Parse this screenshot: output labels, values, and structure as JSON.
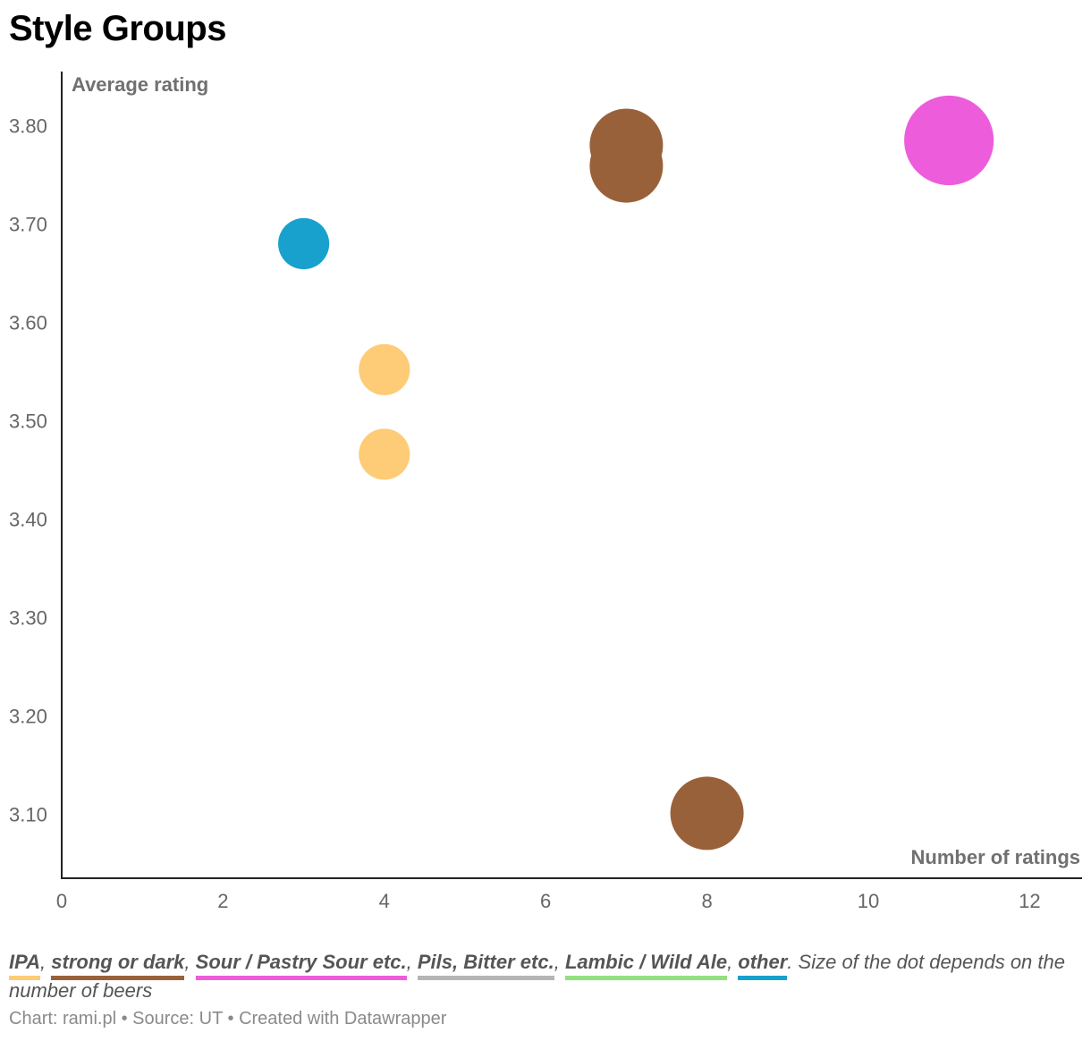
{
  "title": "Style Groups",
  "chart_data": {
    "type": "scatter",
    "title": "Style Groups",
    "xlabel": "Number of ratings",
    "ylabel": "Average rating",
    "xlim": [
      0,
      12.65
    ],
    "ylim": [
      3.035,
      3.855
    ],
    "x_ticks": [
      0,
      2,
      4,
      6,
      8,
      10,
      12
    ],
    "y_ticks": [
      3.1,
      3.2,
      3.3,
      3.4,
      3.5,
      3.6,
      3.7,
      3.8
    ],
    "y_tick_labels": [
      "3.10",
      "3.20",
      "3.30",
      "3.40",
      "3.50",
      "3.60",
      "3.70",
      "3.80"
    ],
    "size_encoding": "number of beers",
    "series": [
      {
        "name": "IPA",
        "color": "#fecb76",
        "points": [
          {
            "x": 4,
            "y": 3.552,
            "size": 1
          },
          {
            "x": 4,
            "y": 3.466,
            "size": 1
          }
        ]
      },
      {
        "name": "strong or dark",
        "color": "#99613a",
        "points": [
          {
            "x": 7,
            "y": 3.78,
            "size": 2
          },
          {
            "x": 7,
            "y": 3.759,
            "size": 2
          },
          {
            "x": 8,
            "y": 3.101,
            "size": 2
          }
        ]
      },
      {
        "name": "Sour / Pastry Sour etc.",
        "color": "#ed5ddb",
        "points": [
          {
            "x": 11,
            "y": 3.785,
            "size": 3
          }
        ]
      },
      {
        "name": "Pils, Bitter etc.",
        "color": "#b5b5b5",
        "points": []
      },
      {
        "name": "Lambic / Wild Ale",
        "color": "#92e07f",
        "points": []
      },
      {
        "name": "other",
        "color": "#18a1cd",
        "points": [
          {
            "x": 3,
            "y": 3.68,
            "size": 1
          }
        ]
      }
    ]
  },
  "legend": {
    "items": [
      {
        "label": "IPA",
        "color": "#fecb76"
      },
      {
        "label": "strong or dark",
        "color": "#99613a"
      },
      {
        "label": "Sour / Pastry Sour etc.",
        "color": "#ed5ddb"
      },
      {
        "label": "Pils, Bitter etc.",
        "color": "#b5b5b5"
      },
      {
        "label": "Lambic / Wild Ale",
        "color": "#92e07f"
      },
      {
        "label": "other",
        "color": "#18a1cd"
      }
    ],
    "note": "Size of the dot depends on the number of beers"
  },
  "footer": {
    "chart_by": "Chart: rami.pl",
    "source": "Source: UT",
    "created_with": "Created with Datawrapper",
    "separator": " • "
  }
}
